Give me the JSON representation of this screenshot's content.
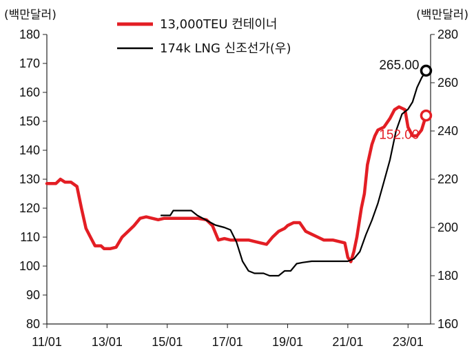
{
  "chart_data": {
    "type": "line",
    "left_axis": {
      "unit_label": "(백만달러)",
      "ylim": [
        80,
        180
      ],
      "ticks": [
        "180",
        "170",
        "160",
        "150",
        "140",
        "130",
        "120",
        "110",
        "100",
        "90",
        "80"
      ]
    },
    "right_axis": {
      "unit_label": "(백만달러)",
      "ylim": [
        160,
        280
      ],
      "ticks": [
        "280",
        "260",
        "240",
        "220",
        "200",
        "180",
        "160"
      ]
    },
    "x_axis": {
      "tick_labels": [
        "11/01",
        "13/01",
        "15/01",
        "17/01",
        "19/01",
        "21/01",
        "23/01"
      ],
      "range": [
        2011.0,
        2023.75
      ]
    },
    "series": [
      {
        "name": "13,000TEU 컨테이너",
        "axis": "left",
        "color": "#e31e24",
        "points": [
          [
            2011.0,
            128.5
          ],
          [
            2011.3,
            128.5
          ],
          [
            2011.45,
            130
          ],
          [
            2011.6,
            129
          ],
          [
            2011.8,
            129
          ],
          [
            2012.0,
            127.5
          ],
          [
            2012.15,
            120
          ],
          [
            2012.3,
            113
          ],
          [
            2012.45,
            110
          ],
          [
            2012.6,
            107
          ],
          [
            2012.8,
            107
          ],
          [
            2012.9,
            106
          ],
          [
            2013.1,
            106
          ],
          [
            2013.3,
            106.5
          ],
          [
            2013.5,
            110
          ],
          [
            2013.7,
            112
          ],
          [
            2013.9,
            114
          ],
          [
            2014.1,
            116.5
          ],
          [
            2014.3,
            117
          ],
          [
            2014.5,
            116.5
          ],
          [
            2014.7,
            116
          ],
          [
            2014.9,
            116.5
          ],
          [
            2015.2,
            116.5
          ],
          [
            2015.6,
            116.5
          ],
          [
            2016.0,
            116.5
          ],
          [
            2016.3,
            116
          ],
          [
            2016.5,
            114
          ],
          [
            2016.7,
            109
          ],
          [
            2016.9,
            109.5
          ],
          [
            2017.1,
            109
          ],
          [
            2017.4,
            109
          ],
          [
            2017.7,
            109
          ],
          [
            2017.9,
            108.5
          ],
          [
            2018.1,
            108
          ],
          [
            2018.3,
            107.5
          ],
          [
            2018.5,
            110
          ],
          [
            2018.7,
            112
          ],
          [
            2018.9,
            113
          ],
          [
            2019.0,
            114
          ],
          [
            2019.2,
            115
          ],
          [
            2019.4,
            115
          ],
          [
            2019.6,
            112
          ],
          [
            2019.8,
            111
          ],
          [
            2020.0,
            110
          ],
          [
            2020.2,
            109
          ],
          [
            2020.5,
            109
          ],
          [
            2020.7,
            108.5
          ],
          [
            2020.9,
            108
          ],
          [
            2021.0,
            103
          ],
          [
            2021.1,
            101.5
          ],
          [
            2021.2,
            105
          ],
          [
            2021.3,
            110
          ],
          [
            2021.45,
            120
          ],
          [
            2021.55,
            125
          ],
          [
            2021.65,
            135
          ],
          [
            2021.8,
            142
          ],
          [
            2021.9,
            145
          ],
          [
            2022.0,
            147
          ],
          [
            2022.2,
            148
          ],
          [
            2022.4,
            151
          ],
          [
            2022.55,
            154
          ],
          [
            2022.7,
            155
          ],
          [
            2022.9,
            154
          ],
          [
            2023.0,
            148
          ],
          [
            2023.15,
            145
          ],
          [
            2023.3,
            145
          ],
          [
            2023.45,
            147
          ],
          [
            2023.6,
            152
          ]
        ]
      },
      {
        "name": "174k LNG 신조선가(우)",
        "axis": "right",
        "color": "#000000",
        "points": [
          [
            2014.8,
            205
          ],
          [
            2015.1,
            205
          ],
          [
            2015.2,
            207
          ],
          [
            2015.5,
            207
          ],
          [
            2015.8,
            207
          ],
          [
            2016.0,
            205
          ],
          [
            2016.3,
            203
          ],
          [
            2016.6,
            201
          ],
          [
            2016.9,
            200
          ],
          [
            2017.1,
            199
          ],
          [
            2017.3,
            194
          ],
          [
            2017.5,
            186
          ],
          [
            2017.7,
            182
          ],
          [
            2017.9,
            181
          ],
          [
            2018.2,
            181
          ],
          [
            2018.4,
            180
          ],
          [
            2018.7,
            180
          ],
          [
            2018.9,
            182
          ],
          [
            2019.1,
            182
          ],
          [
            2019.3,
            185
          ],
          [
            2019.5,
            185.5
          ],
          [
            2019.8,
            186
          ],
          [
            2020.2,
            186
          ],
          [
            2020.6,
            186
          ],
          [
            2021.0,
            186
          ],
          [
            2021.2,
            187
          ],
          [
            2021.4,
            190
          ],
          [
            2021.6,
            197
          ],
          [
            2021.8,
            203
          ],
          [
            2022.0,
            210
          ],
          [
            2022.2,
            219
          ],
          [
            2022.4,
            228
          ],
          [
            2022.6,
            240
          ],
          [
            2022.8,
            247
          ],
          [
            2023.0,
            249
          ],
          [
            2023.15,
            252
          ],
          [
            2023.3,
            258
          ],
          [
            2023.45,
            262
          ],
          [
            2023.6,
            265
          ]
        ]
      }
    ],
    "annotations": [
      {
        "text": "265.00",
        "series": "174k LNG 신조선가(우)",
        "x": 2023.6,
        "y": 265,
        "color": "#111111"
      },
      {
        "text": "152.00",
        "series": "13,000TEU 컨테이너",
        "x": 2023.6,
        "y": 152,
        "color": "#e31e24"
      }
    ],
    "legend": {
      "placement": "top-center"
    },
    "grid": false
  }
}
